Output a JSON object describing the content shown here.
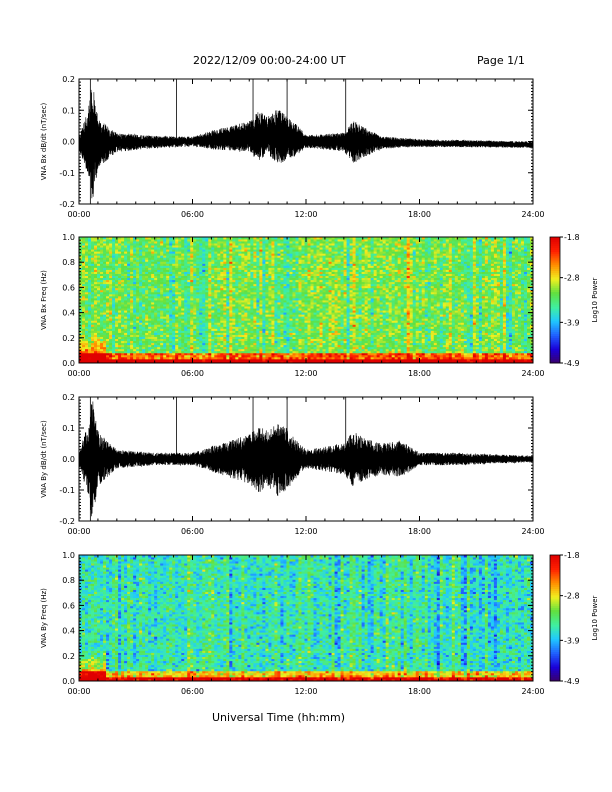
{
  "header": {
    "date_range": "2022/12/09   00:00-24:00 UT",
    "page": "Page 1/1"
  },
  "footer": {
    "xlabel": "Universal Time (hh:mm)"
  },
  "colors": {
    "trace": "#000000",
    "frame": "#000000"
  },
  "colormap": [
    "#3a006a",
    "#1a00d8",
    "#2060ff",
    "#20c8ff",
    "#40f0a0",
    "#60e040",
    "#f0f020",
    "#ff9000",
    "#ff2000",
    "#e00000"
  ],
  "chart_data": [
    {
      "type": "line",
      "name": "bx_waveform",
      "ylabel": "VNA Bx dB/dt (nT/sec)",
      "xticks": [
        "00:00",
        "06:00",
        "12:00",
        "18:00",
        "24:00"
      ],
      "xlim": [
        0,
        24
      ],
      "ylim": [
        -0.2,
        0.2
      ],
      "yticks": [
        "0.2",
        "0.1",
        "0.0",
        "-0.1",
        "-0.2"
      ],
      "spikes_hours": [
        0.6,
        5.15,
        9.2,
        11.0,
        14.1
      ],
      "envelope": [
        [
          0,
          0.02
        ],
        [
          0.5,
          0.11
        ],
        [
          0.7,
          0.2
        ],
        [
          1.0,
          0.08
        ],
        [
          2,
          0.03
        ],
        [
          4,
          0.02
        ],
        [
          6,
          0.015
        ],
        [
          7,
          0.03
        ],
        [
          8,
          0.04
        ],
        [
          9,
          0.05
        ],
        [
          9.5,
          0.08
        ],
        [
          10,
          0.06
        ],
        [
          10.5,
          0.09
        ],
        [
          11,
          0.07
        ],
        [
          11.5,
          0.05
        ],
        [
          12,
          0.02
        ],
        [
          14,
          0.03
        ],
        [
          14.5,
          0.07
        ],
        [
          15,
          0.05
        ],
        [
          16,
          0.02
        ],
        [
          18,
          0.012
        ],
        [
          24,
          0.01
        ]
      ],
      "baseline": [
        [
          0,
          -0.005
        ],
        [
          6,
          0.0
        ],
        [
          10,
          0.02
        ],
        [
          12,
          0.0
        ],
        [
          24,
          -0.01
        ]
      ]
    },
    {
      "type": "heatmap",
      "name": "bx_spectrogram",
      "ylabel": "VNA Bx Freq (Hz)",
      "xticks": [
        "00:00",
        "06:00",
        "12:00",
        "18:00",
        "24:00"
      ],
      "xlim": [
        0,
        24
      ],
      "ylim": [
        0.0,
        1.0
      ],
      "yticks": [
        "1.0",
        "0.8",
        "0.6",
        "0.4",
        "0.2",
        "0.0"
      ],
      "colorbar": {
        "label": "Log10 Power",
        "ticks": [
          "-1.8",
          "-2.8",
          "-3.9",
          "-4.9"
        ],
        "range": [
          -4.9,
          -1.8
        ]
      },
      "background_level": -3.2
    },
    {
      "type": "line",
      "name": "by_waveform",
      "ylabel": "VNA By dB/dt (nT/sec)",
      "xticks": [
        "00:00",
        "06:00",
        "12:00",
        "18:00",
        "24:00"
      ],
      "xlim": [
        0,
        24
      ],
      "ylim": [
        -0.2,
        0.2
      ],
      "yticks": [
        "0.2",
        "0.1",
        "0.0",
        "-0.1",
        "-0.2"
      ],
      "spikes_hours": [
        0.6,
        5.15,
        9.2,
        11.0,
        14.1
      ],
      "envelope": [
        [
          0,
          0.02
        ],
        [
          0.5,
          0.12
        ],
        [
          0.7,
          0.2
        ],
        [
          1.0,
          0.09
        ],
        [
          2,
          0.03
        ],
        [
          4,
          0.02
        ],
        [
          6,
          0.02
        ],
        [
          7,
          0.04
        ],
        [
          8,
          0.06
        ],
        [
          9,
          0.08
        ],
        [
          9.5,
          0.11
        ],
        [
          10,
          0.09
        ],
        [
          10.5,
          0.12
        ],
        [
          11,
          0.1
        ],
        [
          11.5,
          0.06
        ],
        [
          12,
          0.03
        ],
        [
          13,
          0.04
        ],
        [
          14,
          0.05
        ],
        [
          14.5,
          0.09
        ],
        [
          15,
          0.07
        ],
        [
          16,
          0.05
        ],
        [
          17,
          0.06
        ],
        [
          18,
          0.02
        ],
        [
          20,
          0.02
        ],
        [
          24,
          0.01
        ]
      ],
      "baseline": [
        [
          0,
          0.0
        ],
        [
          24,
          0.0
        ]
      ]
    },
    {
      "type": "heatmap",
      "name": "by_spectrogram",
      "ylabel": "VNA By Freq (Hz)",
      "xticks": [
        "00:00",
        "06:00",
        "12:00",
        "18:00",
        "24:00"
      ],
      "xlim": [
        0,
        24
      ],
      "ylim": [
        0.0,
        1.0
      ],
      "yticks": [
        "1.0",
        "0.8",
        "0.6",
        "0.4",
        "0.2",
        "0.0"
      ],
      "colorbar": {
        "label": "Log10 Power",
        "ticks": [
          "-1.8",
          "-2.8",
          "-3.9",
          "-4.9"
        ],
        "range": [
          -4.9,
          -1.8
        ]
      },
      "background_level": -3.6
    }
  ]
}
